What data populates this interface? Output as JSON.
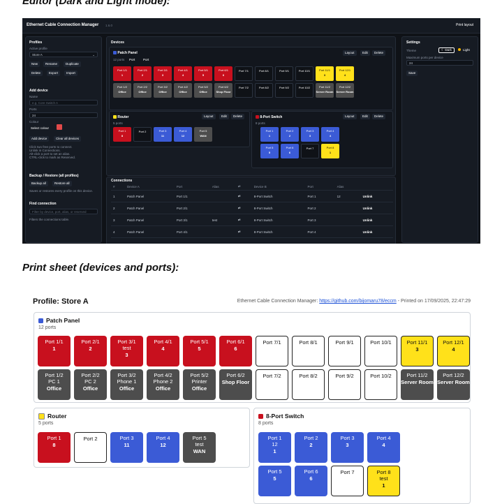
{
  "captions": {
    "dark": "Editor (Dark and Light mode):",
    "print": "Print sheet (devices and ports):"
  },
  "colors": {
    "red": "#c8101e",
    "gray": "#4d4d4d",
    "white": "#ffffff",
    "yellow": "#ffe11a",
    "blue": "#3b5bd6",
    "dark_bg": "#0f1217"
  },
  "editor": {
    "title": "Ethernet Cable Connection Manager",
    "version": "1.6.0",
    "print_layout": "Print layout",
    "profiles": {
      "heading": "Profiles",
      "active_label": "Active profile",
      "active_value": "Store A",
      "buttons": [
        "New",
        "Rename",
        "Duplicate",
        "Delete",
        "Export",
        "Import"
      ]
    },
    "add_device": {
      "heading": "Add device",
      "name_label": "Name",
      "name_placeholder": "e.g. Core Switch A",
      "ports_label": "Ports",
      "ports_value": "24",
      "colour_label": "Colour",
      "select_colour": "Select colour",
      "add_button": "Add device",
      "clear_button": "Clear all devices",
      "help1": "Click two free ports to connect.",
      "help2": "Unlink in Connections.",
      "help3": "Alt-click a port to set an alias.",
      "help4": "CTRL-click to mark as Reserved."
    },
    "backup": {
      "heading": "Backup / Restore (all profiles)",
      "backup_button": "Backup all",
      "restore_button": "Restore all",
      "help": "Saves or restores every profile on this device."
    },
    "find": {
      "heading": "Find connection",
      "placeholder": "Filter by device, port, alias, or reserved",
      "help": "Filters the connections table."
    },
    "devices_heading": "Devices",
    "device_actions": [
      "Layout",
      "Edit",
      "Delete"
    ],
    "patch_panel": {
      "name": "Patch Panel",
      "meta": "12 ports",
      "legend": [
        "Port",
        "Port"
      ]
    },
    "router": {
      "name": "Router",
      "meta": "5 ports",
      "legend": [
        "Port",
        "Port"
      ]
    },
    "switch": {
      "name": "8-Port Switch",
      "meta": "8 ports",
      "legend": [
        "Port",
        "Port"
      ]
    },
    "settings": {
      "heading": "Settings",
      "theme_label": "Theme",
      "dark": "Dark",
      "light": "Light",
      "ports_label": "Maximum ports per device",
      "ports_value": "24",
      "save": "Save"
    },
    "connections": {
      "heading": "Connections",
      "columns": [
        "#",
        "Device A",
        "Port",
        "Alias",
        "⇄",
        "Device B",
        "Port",
        "Alias",
        ""
      ],
      "rows": [
        [
          "1",
          "Patch Panel",
          "Port 1/1",
          "",
          "⇄",
          "8-Port Switch",
          "Port 1",
          "12",
          "Unlink"
        ],
        [
          "2",
          "Patch Panel",
          "Port 2/1",
          "",
          "⇄",
          "8-Port Switch",
          "Port 2",
          "",
          "Unlink"
        ],
        [
          "3",
          "Patch Panel",
          "Port 3/1",
          "test",
          "⇄",
          "8-Port Switch",
          "Port 3",
          "",
          "Unlink"
        ],
        [
          "4",
          "Patch Panel",
          "Port 4/1",
          "",
          "⇄",
          "8-Port Switch",
          "Port 4",
          "",
          "Unlink"
        ]
      ]
    }
  },
  "print": {
    "profile_title": "Profile: Store A",
    "app_name": "Ethernet Cable Connection Manager:",
    "url": "https://github.com/bijomaru78/eccm",
    "printed": " - Printed on 17/09/2025, 22:47:29",
    "patch_panel": {
      "name": "Patch Panel",
      "ports_text": "12 ports",
      "row1": [
        {
          "label": "Port 1/1",
          "alias": "",
          "number": "1",
          "color": "red"
        },
        {
          "label": "Port 2/1",
          "alias": "",
          "number": "2",
          "color": "red"
        },
        {
          "label": "Port 3/1",
          "alias": "test",
          "number": "3",
          "color": "red"
        },
        {
          "label": "Port 4/1",
          "alias": "",
          "number": "4",
          "color": "red"
        },
        {
          "label": "Port 5/1",
          "alias": "",
          "number": "5",
          "color": "red"
        },
        {
          "label": "Port 6/1",
          "alias": "",
          "number": "6",
          "color": "red"
        },
        {
          "label": "Port 7/1",
          "alias": "",
          "number": "",
          "color": "white"
        },
        {
          "label": "Port 8/1",
          "alias": "",
          "number": "",
          "color": "white"
        },
        {
          "label": "Port 9/1",
          "alias": "",
          "number": "",
          "color": "white"
        },
        {
          "label": "Port 10/1",
          "alias": "",
          "number": "",
          "color": "white"
        },
        {
          "label": "Port 11/1",
          "alias": "",
          "number": "3",
          "color": "yellow"
        },
        {
          "label": "Port 12/1",
          "alias": "",
          "number": "4",
          "color": "yellow"
        }
      ],
      "row2": [
        {
          "label": "Port 1/2",
          "alias": "PC 1",
          "number": "Office",
          "color": "gray"
        },
        {
          "label": "Port 2/2",
          "alias": "PC 2",
          "number": "Office",
          "color": "gray"
        },
        {
          "label": "Port 3/2",
          "alias": "Phone 1",
          "number": "Office",
          "color": "gray"
        },
        {
          "label": "Port 4/2",
          "alias": "Phone 2",
          "number": "Office",
          "color": "gray"
        },
        {
          "label": "Port 5/2",
          "alias": "Printer",
          "number": "Office",
          "color": "gray"
        },
        {
          "label": "Port 6/2",
          "alias": "",
          "number": "Shop Floor",
          "color": "gray"
        },
        {
          "label": "Port 7/2",
          "alias": "",
          "number": "",
          "color": "white"
        },
        {
          "label": "Port 8/2",
          "alias": "",
          "number": "",
          "color": "white"
        },
        {
          "label": "Port 9/2",
          "alias": "",
          "number": "",
          "color": "white"
        },
        {
          "label": "Port 10/2",
          "alias": "",
          "number": "",
          "color": "white"
        },
        {
          "label": "Port 11/2",
          "alias": "",
          "number": "Server Room",
          "color": "gray"
        },
        {
          "label": "Port 12/2",
          "alias": "",
          "number": "Server Room",
          "color": "gray"
        }
      ]
    },
    "router": {
      "name": "Router",
      "ports_text": "5 ports",
      "ports": [
        {
          "label": "Port 1",
          "alias": "",
          "number": "8",
          "color": "red"
        },
        {
          "label": "Port 2",
          "alias": "",
          "number": "",
          "color": "white"
        },
        {
          "label": "Port 3",
          "alias": "",
          "number": "11",
          "color": "blue"
        },
        {
          "label": "Port 4",
          "alias": "",
          "number": "12",
          "color": "blue"
        },
        {
          "label": "Port 5",
          "alias": "test",
          "number": "WAN",
          "color": "gray"
        }
      ]
    },
    "switch": {
      "name": "8-Port Switch",
      "ports_text": "8 ports",
      "row1": [
        {
          "label": "Port 1",
          "alias": "12",
          "number": "1",
          "color": "blue"
        },
        {
          "label": "Port 2",
          "alias": "",
          "number": "2",
          "color": "blue"
        },
        {
          "label": "Port 3",
          "alias": "",
          "number": "3",
          "color": "blue"
        },
        {
          "label": "Port 4",
          "alias": "",
          "number": "4",
          "color": "blue"
        }
      ],
      "row2": [
        {
          "label": "Port 5",
          "alias": "",
          "number": "5",
          "color": "blue"
        },
        {
          "label": "Port 6",
          "alias": "",
          "number": "6",
          "color": "blue"
        },
        {
          "label": "Port 7",
          "alias": "",
          "number": "",
          "color": "white"
        },
        {
          "label": "Port 8",
          "alias": "test",
          "number": "1",
          "color": "yellow"
        }
      ]
    }
  }
}
